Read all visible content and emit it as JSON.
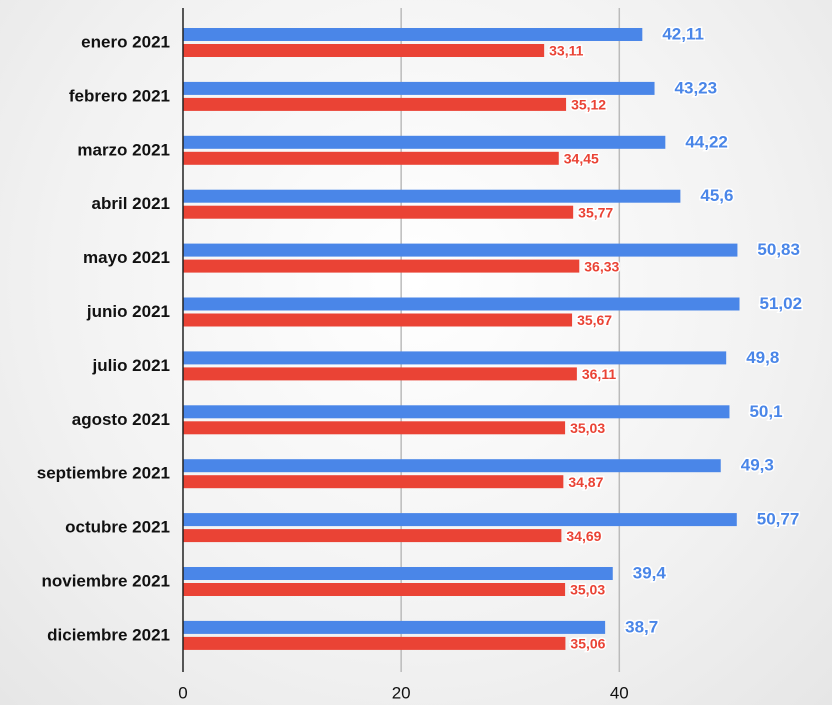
{
  "chart_data": {
    "type": "bar",
    "orientation": "horizontal",
    "categories": [
      "enero 2021",
      "febrero 2021",
      "marzo 2021",
      "abril 2021",
      "mayo 2021",
      "junio 2021",
      "julio 2021",
      "agosto 2021",
      "septiembre 2021",
      "octubre 2021",
      "noviembre 2021",
      "diciembre 2021"
    ],
    "series": [
      {
        "color": "#4a86e8",
        "values": [
          42.11,
          43.23,
          44.22,
          45.6,
          50.83,
          51.02,
          49.8,
          50.1,
          49.3,
          50.77,
          39.4,
          38.7
        ],
        "value_labels": [
          "42,11",
          "43,23",
          "44,22",
          "45,6",
          "50,83",
          "51,02",
          "49,8",
          "50,1",
          "49,3",
          "50,77",
          "39,4",
          "38,7"
        ]
      },
      {
        "color": "#ea4335",
        "values": [
          33.11,
          35.12,
          34.45,
          35.77,
          36.33,
          35.67,
          36.11,
          35.03,
          34.87,
          34.69,
          35.03,
          35.06
        ],
        "value_labels": [
          "33,11",
          "35,12",
          "34,45",
          "35,77",
          "36,33",
          "35,67",
          "36,11",
          "35,03",
          "34,87",
          "34,69",
          "35,03",
          "35,06"
        ]
      }
    ],
    "xlim": [
      0,
      59.5
    ],
    "xticks": [
      0,
      20,
      40
    ],
    "grid": true
  }
}
